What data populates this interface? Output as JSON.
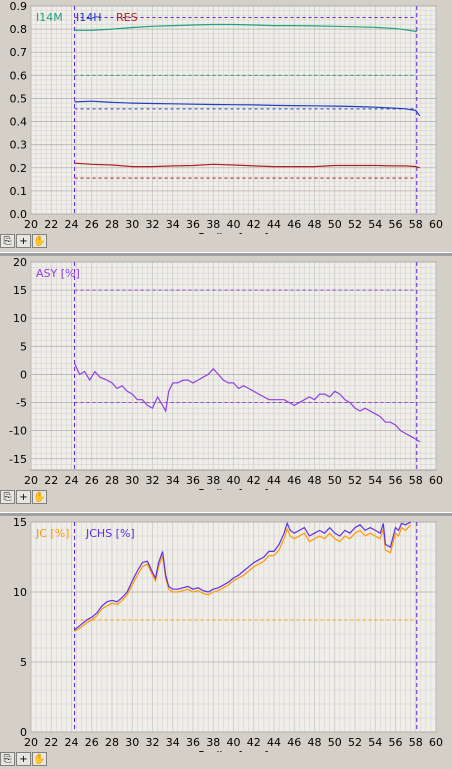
{
  "toolbar": {
    "icons": [
      "pin-icon",
      "crosshair-icon",
      "hand-pan-icon"
    ],
    "crosshair_glyph": "+",
    "hand_glyph": "✋",
    "pin_glyph": "⎘"
  },
  "colors": {
    "plot_bg": "#f0eee8",
    "grid": "#c8c8c8",
    "limit": "#6020e0",
    "i14m": "#20a080",
    "i14h": "#2040c0",
    "res": "#b02020",
    "asy": "#9040e0",
    "jc": "#ff9900",
    "jchs": "#6030e0"
  },
  "chart_data": [
    {
      "type": "line",
      "xlabel": "Radius [mm]",
      "xlim": [
        20,
        60
      ],
      "ylim": [
        0,
        0.9
      ],
      "xticks": [
        "20",
        "22",
        "24",
        "26",
        "28",
        "30",
        "32",
        "34",
        "36",
        "38",
        "40",
        "42",
        "44",
        "46",
        "48",
        "50",
        "52",
        "54",
        "56",
        "58",
        "60"
      ],
      "yticks": [
        "0.0",
        "0.1",
        "0.2",
        "0.3",
        "0.4",
        "0.5",
        "0.6",
        "0.7",
        "0.8",
        "0.9"
      ],
      "yticks_values": [
        0,
        0.1,
        0.2,
        0.3,
        0.4,
        0.5,
        0.6,
        0.7,
        0.8,
        0.9
      ],
      "vlines": [
        24.3,
        58.1
      ],
      "legend": [
        "I14M",
        "I14H",
        "RES"
      ],
      "series": [
        {
          "name": "I14M",
          "x": [
            24.3,
            26,
            28,
            30,
            32,
            34,
            36,
            38,
            40,
            42,
            44,
            46,
            48,
            50,
            52,
            54,
            56,
            57,
            58,
            58.1
          ],
          "y": [
            0.795,
            0.795,
            0.8,
            0.807,
            0.812,
            0.815,
            0.818,
            0.82,
            0.82,
            0.818,
            0.815,
            0.815,
            0.814,
            0.812,
            0.81,
            0.808,
            0.802,
            0.797,
            0.79,
            0.79
          ]
        },
        {
          "name": "I14H",
          "x": [
            24.3,
            26,
            28,
            30,
            32,
            34,
            36,
            38,
            40,
            42,
            44,
            46,
            48,
            50,
            52,
            54,
            56,
            57,
            58,
            58.4
          ],
          "y": [
            0.485,
            0.488,
            0.483,
            0.48,
            0.478,
            0.477,
            0.475,
            0.474,
            0.473,
            0.472,
            0.47,
            0.469,
            0.468,
            0.467,
            0.465,
            0.462,
            0.458,
            0.455,
            0.448,
            0.425
          ]
        },
        {
          "name": "RES",
          "x": [
            24.3,
            26,
            28,
            30,
            32,
            34,
            36,
            38,
            40,
            42,
            44,
            46,
            48,
            50,
            52,
            54,
            56,
            57,
            58,
            58.4
          ],
          "y": [
            0.22,
            0.215,
            0.212,
            0.205,
            0.205,
            0.208,
            0.21,
            0.215,
            0.212,
            0.208,
            0.205,
            0.205,
            0.205,
            0.21,
            0.21,
            0.21,
            0.208,
            0.208,
            0.205,
            0.2
          ]
        }
      ],
      "hlines": [
        {
          "y": 0.85,
          "color_key": "limit"
        },
        {
          "y": 0.6,
          "color_key": "i14m"
        },
        {
          "y": 0.455,
          "color_key": "i14h"
        },
        {
          "y": 0.155,
          "color_key": "res"
        }
      ]
    },
    {
      "type": "line",
      "xlabel": "Radius [mm]",
      "xlim": [
        20,
        60
      ],
      "ylim": [
        -17,
        20
      ],
      "xticks": [
        "20",
        "22",
        "24",
        "26",
        "28",
        "30",
        "32",
        "34",
        "36",
        "38",
        "40",
        "42",
        "44",
        "46",
        "48",
        "50",
        "52",
        "54",
        "56",
        "58",
        "60"
      ],
      "yticks": [
        "-15",
        "-10",
        "-5",
        "0",
        "5",
        "10",
        "15",
        "20"
      ],
      "yticks_values": [
        -15,
        -10,
        -5,
        0,
        5,
        10,
        15,
        20
      ],
      "vlines": [
        24.3,
        58.1
      ],
      "legend": [
        "ASY [%]"
      ],
      "series": [
        {
          "name": "ASY [%]",
          "x": [
            24.3,
            24.8,
            25.3,
            25.8,
            26.3,
            26.8,
            27.5,
            28,
            28.5,
            29,
            29.5,
            30,
            30.5,
            31,
            31.5,
            32,
            32.5,
            33,
            33.3,
            33.6,
            34,
            34.5,
            35,
            35.5,
            36,
            36.5,
            37,
            37.5,
            38,
            38.5,
            39,
            39.5,
            40,
            40.5,
            41,
            41.5,
            42,
            42.5,
            43,
            43.5,
            44,
            44.5,
            45,
            45.5,
            46,
            46.5,
            47,
            47.5,
            48,
            48.5,
            49,
            49.5,
            50,
            50.5,
            51,
            51.5,
            52,
            52.5,
            53,
            53.5,
            54,
            54.5,
            55,
            55.5,
            56,
            56.5,
            57,
            57.5,
            58,
            58.4
          ],
          "y": [
            2,
            0,
            0.5,
            -1,
            0.5,
            -0.5,
            -1,
            -1.5,
            -2.5,
            -2,
            -3,
            -3.5,
            -4.5,
            -4.5,
            -5.5,
            -6,
            -4,
            -5.5,
            -6.5,
            -3,
            -1.5,
            -1.5,
            -1,
            -1,
            -1.5,
            -1,
            -0.5,
            0,
            1,
            0,
            -1,
            -1.5,
            -1.5,
            -2.5,
            -2,
            -2.5,
            -3,
            -3.5,
            -4,
            -4.5,
            -4.5,
            -4.5,
            -4.5,
            -5,
            -5.5,
            -5,
            -4.5,
            -4,
            -4.5,
            -3.5,
            -3.5,
            -4,
            -3,
            -3.5,
            -4.5,
            -5,
            -6,
            -6.5,
            -6,
            -6.5,
            -7,
            -7.5,
            -8.5,
            -8.5,
            -9,
            -10,
            -10.5,
            -11,
            -11.5,
            -12
          ]
        }
      ],
      "hlines": [
        {
          "y": 15,
          "color_key": "asy"
        },
        {
          "y": -5,
          "color_key": "asy"
        }
      ]
    },
    {
      "type": "line",
      "xlabel": "Radius [mm]",
      "xlim": [
        20,
        60
      ],
      "ylim": [
        0,
        15
      ],
      "xticks": [
        "20",
        "22",
        "24",
        "26",
        "28",
        "30",
        "32",
        "34",
        "36",
        "38",
        "40",
        "42",
        "44",
        "46",
        "48",
        "50",
        "52",
        "54",
        "56",
        "58",
        "60"
      ],
      "yticks": [
        "0",
        "5",
        "10",
        "15"
      ],
      "yticks_values": [
        0,
        5,
        10,
        15
      ],
      "vlines": [
        24.3,
        58.1
      ],
      "legend": [
        "JC [%]",
        "JCHS [%]"
      ],
      "series": [
        {
          "name": "JC [%]",
          "x": [
            24.3,
            25,
            25.5,
            26,
            26.5,
            27,
            27.5,
            28,
            28.5,
            29,
            29.5,
            30,
            30.5,
            31,
            31.5,
            32,
            32.3,
            32.6,
            33,
            33.3,
            33.6,
            34,
            34.5,
            35,
            35.5,
            36,
            36.5,
            37,
            37.5,
            38,
            38.5,
            39,
            39.5,
            40,
            40.5,
            41,
            41.5,
            42,
            42.5,
            43,
            43.5,
            44,
            44.5,
            45,
            45.3,
            45.6,
            46,
            46.5,
            47,
            47.5,
            48,
            48.5,
            49,
            49.5,
            50,
            50.5,
            51,
            51.5,
            52,
            52.5,
            53,
            53.5,
            54,
            54.5,
            54.8,
            55,
            55.5,
            56,
            56.3,
            56.6,
            57,
            57.5
          ],
          "y": [
            7.2,
            7.5,
            7.8,
            8.0,
            8.3,
            8.8,
            9.0,
            9.2,
            9.1,
            9.4,
            9.8,
            10.5,
            11.2,
            11.8,
            12.0,
            11.2,
            10.8,
            11.8,
            12.6,
            11.0,
            10.2,
            10.0,
            10.0,
            10.1,
            10.2,
            10.0,
            10.1,
            9.9,
            9.8,
            10.0,
            10.1,
            10.3,
            10.5,
            10.8,
            11.0,
            11.2,
            11.5,
            11.8,
            12.0,
            12.2,
            12.6,
            12.6,
            13.0,
            13.8,
            14.5,
            14.0,
            13.8,
            14.0,
            14.2,
            13.6,
            13.8,
            14.0,
            13.8,
            14.2,
            13.8,
            13.6,
            14.0,
            13.8,
            14.2,
            14.4,
            14.0,
            14.2,
            14.0,
            13.8,
            14.5,
            13.0,
            12.8,
            14.2,
            14.0,
            14.6,
            14.4,
            14.8
          ]
        },
        {
          "name": "JCHS [%]",
          "x": [
            24.3,
            25,
            25.5,
            26,
            26.5,
            27,
            27.5,
            28,
            28.5,
            29,
            29.5,
            30,
            30.5,
            31,
            31.5,
            32,
            32.3,
            32.6,
            33,
            33.3,
            33.6,
            34,
            34.5,
            35,
            35.5,
            36,
            36.5,
            37,
            37.5,
            38,
            38.5,
            39,
            39.5,
            40,
            40.5,
            41,
            41.5,
            42,
            42.5,
            43,
            43.5,
            44,
            44.5,
            45,
            45.3,
            45.6,
            46,
            46.5,
            47,
            47.5,
            48,
            48.5,
            49,
            49.5,
            50,
            50.5,
            51,
            51.5,
            52,
            52.5,
            53,
            53.5,
            54,
            54.5,
            54.8,
            55,
            55.5,
            56,
            56.3,
            56.6,
            57,
            57.5
          ],
          "y": [
            7.3,
            7.7,
            8.0,
            8.2,
            8.5,
            9.0,
            9.3,
            9.4,
            9.3,
            9.6,
            10.0,
            10.8,
            11.5,
            12.1,
            12.2,
            11.4,
            11.0,
            12.1,
            12.9,
            11.2,
            10.4,
            10.2,
            10.2,
            10.3,
            10.4,
            10.2,
            10.3,
            10.1,
            10.0,
            10.2,
            10.3,
            10.5,
            10.7,
            11.0,
            11.2,
            11.5,
            11.8,
            12.1,
            12.3,
            12.5,
            12.9,
            12.9,
            13.4,
            14.2,
            14.9,
            14.4,
            14.2,
            14.4,
            14.6,
            14.0,
            14.2,
            14.4,
            14.2,
            14.6,
            14.2,
            14.0,
            14.4,
            14.2,
            14.6,
            14.8,
            14.4,
            14.6,
            14.4,
            14.2,
            14.9,
            13.4,
            13.2,
            14.6,
            14.4,
            14.9,
            14.8,
            15.0
          ]
        }
      ],
      "hlines": [
        {
          "y": 8.0,
          "color_key": "jc"
        }
      ]
    }
  ]
}
